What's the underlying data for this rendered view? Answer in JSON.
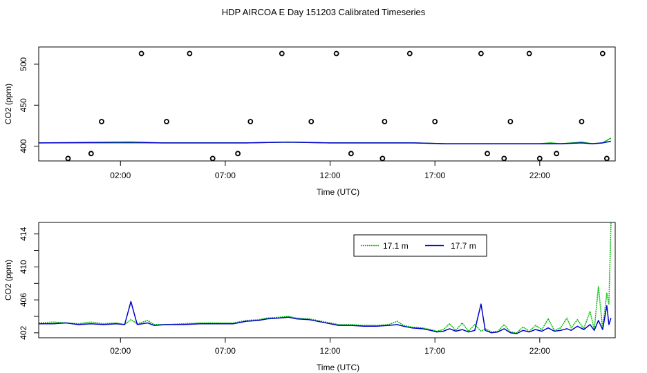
{
  "title": "HDP AIRCOA E  Day 151203  Calibrated Timeseries",
  "colors": {
    "series_1": "#00c000",
    "series_2": "#0000cc",
    "axis": "#000000"
  },
  "chart_data": [
    {
      "type": "scatter+line",
      "xlabel": "Time (UTC)",
      "ylabel": "CO2 (ppm)",
      "x_unit": "hours UTC",
      "xlim": [
        -1.9,
        25.6
      ],
      "ylim": [
        382,
        521
      ],
      "xticks": [
        2,
        7,
        12,
        17,
        22
      ],
      "xtick_labels": [
        "02:00",
        "07:00",
        "12:00",
        "17:00",
        "22:00"
      ],
      "yticks": [
        400,
        450,
        500
      ],
      "yticks_minor": [],
      "ytick_labels": [
        "400",
        "450",
        "500"
      ],
      "calibration_points": {
        "x": [
          -0.5,
          0.6,
          1.1,
          3.0,
          4.2,
          5.3,
          6.4,
          7.6,
          8.2,
          9.7,
          11.1,
          12.3,
          13.0,
          14.5,
          14.6,
          15.8,
          17.0,
          19.2,
          19.5,
          20.3,
          20.6,
          21.5,
          22.0,
          22.8,
          24.0,
          25.0,
          25.2
        ],
        "y": [
          385,
          391,
          430,
          513,
          430,
          513,
          385,
          391,
          430,
          513,
          430,
          513,
          391,
          385,
          430,
          513,
          430,
          513,
          391,
          385,
          430,
          513,
          385,
          391,
          430,
          513,
          385
        ]
      },
      "series": [
        {
          "name": "",
          "color": "#00c000",
          "x": [
            -1.9,
            2.5,
            4.0,
            6.0,
            8.0,
            10.0,
            12.0,
            14.0,
            16.0,
            17.5,
            18.0,
            20.0,
            22.0,
            22.5,
            23.0,
            24.0,
            24.5,
            25.0,
            25.4
          ],
          "y": [
            404,
            404,
            404,
            404,
            404,
            405,
            404,
            404,
            404,
            403,
            403,
            403,
            403,
            404,
            403,
            405,
            403,
            404,
            410
          ]
        },
        {
          "name": "",
          "color": "#0000cc",
          "x": [
            -1.9,
            2.5,
            4.0,
            6.0,
            8.0,
            10.0,
            12.0,
            14.0,
            16.0,
            17.5,
            18.0,
            20.0,
            22.0,
            22.5,
            23.0,
            24.0,
            24.5,
            25.0,
            25.4
          ],
          "y": [
            404,
            405,
            404,
            404,
            404,
            405,
            404,
            404,
            404,
            403,
            403,
            403,
            403,
            403,
            403,
            404,
            403,
            404,
            406
          ]
        }
      ]
    },
    {
      "type": "line",
      "xlabel": "Time (UTC)",
      "ylabel": "CO2 (ppm)",
      "x_unit": "hours UTC",
      "xlim": [
        -1.9,
        25.6
      ],
      "ylim": [
        401.4,
        415.4
      ],
      "xticks": [
        2,
        7,
        12,
        17,
        22
      ],
      "xtick_labels": [
        "02:00",
        "07:00",
        "12:00",
        "17:00",
        "22:00"
      ],
      "yticks": [
        402,
        406,
        410,
        414
      ],
      "yticks_minor": [
        404,
        408,
        412
      ],
      "ytick_labels": [
        "402",
        "406",
        "410",
        "414"
      ],
      "legend": {
        "placement": "top-right",
        "entries": [
          "17.1 m",
          "17.7 m"
        ]
      },
      "series": [
        {
          "name": "17.1 m",
          "color": "#00c000",
          "style": "dotted",
          "x": [
            -1.9,
            -1.2,
            -0.6,
            0.0,
            0.6,
            1.2,
            1.8,
            2.2,
            2.5,
            2.8,
            3.3,
            3.6,
            4.2,
            5.0,
            5.8,
            6.6,
            7.4,
            8.0,
            8.6,
            9.0,
            9.6,
            10.0,
            10.4,
            11.0,
            11.6,
            12.0,
            12.4,
            13.0,
            13.6,
            14.2,
            14.8,
            15.2,
            15.5,
            15.9,
            16.4,
            16.8,
            17.1,
            17.4,
            17.7,
            18.0,
            18.3,
            18.6,
            18.9,
            19.2,
            19.4,
            19.7,
            20.0,
            20.3,
            20.6,
            20.9,
            21.2,
            21.5,
            21.8,
            22.1,
            22.4,
            22.7,
            23.0,
            23.3,
            23.5,
            23.8,
            24.1,
            24.4,
            24.6,
            24.8,
            25.0,
            25.2,
            25.3,
            25.4
          ],
          "y": [
            403.2,
            403.3,
            403.2,
            403.1,
            403.3,
            403.1,
            403.2,
            403.0,
            403.6,
            403.1,
            403.5,
            403.0,
            403.0,
            403.1,
            403.2,
            403.2,
            403.2,
            403.5,
            403.6,
            403.8,
            403.9,
            404.0,
            403.8,
            403.7,
            403.4,
            403.2,
            403.0,
            403.0,
            402.9,
            402.9,
            403.0,
            403.4,
            402.9,
            402.7,
            402.6,
            402.4,
            402.2,
            402.4,
            403.1,
            402.3,
            403.2,
            402.2,
            403.0,
            402.2,
            402.5,
            402.1,
            402.2,
            403.0,
            402.1,
            402.0,
            402.7,
            402.2,
            402.9,
            402.4,
            403.7,
            402.3,
            402.6,
            403.8,
            402.6,
            403.6,
            402.5,
            404.6,
            402.4,
            407.6,
            402.5,
            406.8,
            405.5,
            415.4
          ]
        },
        {
          "name": "17.7 m",
          "color": "#0000cc",
          "style": "solid",
          "x": [
            -1.9,
            -1.2,
            -0.6,
            0.0,
            0.6,
            1.2,
            1.8,
            2.2,
            2.5,
            2.8,
            3.3,
            3.6,
            4.2,
            5.0,
            5.8,
            6.6,
            7.4,
            8.0,
            8.6,
            9.0,
            9.6,
            10.0,
            10.4,
            11.0,
            11.6,
            12.0,
            12.4,
            13.0,
            13.6,
            14.2,
            14.8,
            15.2,
            15.5,
            15.9,
            16.4,
            16.8,
            17.1,
            17.4,
            17.7,
            18.0,
            18.3,
            18.6,
            18.9,
            19.2,
            19.4,
            19.7,
            20.0,
            20.3,
            20.6,
            20.9,
            21.2,
            21.5,
            21.8,
            22.1,
            22.4,
            22.7,
            23.0,
            23.3,
            23.5,
            23.8,
            24.1,
            24.4,
            24.6,
            24.8,
            25.0,
            25.2,
            25.3,
            25.4
          ],
          "y": [
            403.1,
            403.1,
            403.2,
            403.0,
            403.1,
            403.0,
            403.1,
            403.0,
            405.8,
            403.0,
            403.2,
            402.9,
            403.0,
            403.0,
            403.1,
            403.1,
            403.1,
            403.4,
            403.5,
            403.7,
            403.8,
            403.9,
            403.7,
            403.6,
            403.3,
            403.1,
            402.9,
            402.9,
            402.8,
            402.8,
            402.9,
            403.0,
            402.8,
            402.6,
            402.5,
            402.3,
            402.1,
            402.2,
            402.5,
            402.2,
            402.4,
            402.1,
            402.3,
            405.5,
            402.3,
            402.0,
            402.1,
            402.5,
            402.0,
            401.9,
            402.3,
            402.1,
            402.4,
            402.2,
            402.6,
            402.2,
            402.3,
            402.5,
            402.3,
            402.8,
            402.4,
            403.0,
            402.3,
            403.5,
            402.4,
            405.3,
            403.0,
            403.8
          ]
        }
      ]
    }
  ]
}
